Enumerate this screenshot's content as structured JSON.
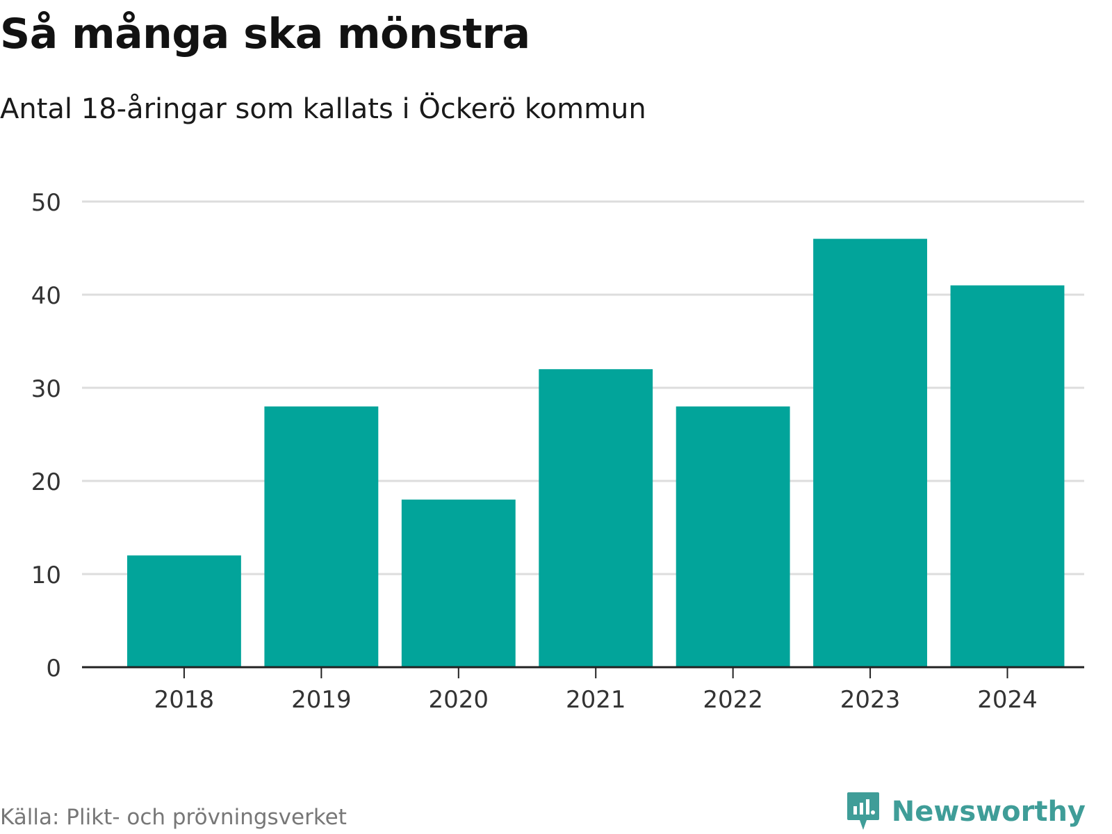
{
  "header": {
    "title": "Så många ska mönstra",
    "subtitle": "Antal 18-åringar som kallats i Öckerö kommun"
  },
  "footer": {
    "source": "Källa: Plikt- och prövningsverket",
    "brand": "Newsworthy",
    "brand_icon": "newsworthy-logo-icon"
  },
  "colors": {
    "bar": "#02a49a",
    "grid": "#dddddd",
    "axis": "#222222",
    "brand": "#3f9d98"
  },
  "chart_data": {
    "type": "bar",
    "title": "Så många ska mönstra",
    "subtitle": "Antal 18-åringar som kallats i Öckerö kommun",
    "categories": [
      "2018",
      "2019",
      "2020",
      "2021",
      "2022",
      "2023",
      "2024"
    ],
    "values": [
      12,
      28,
      18,
      32,
      28,
      46,
      41
    ],
    "xlabel": "",
    "ylabel": "",
    "ylim": [
      0,
      50
    ],
    "yticks": [
      0,
      10,
      20,
      30,
      40,
      50
    ],
    "grid": true,
    "legend": "none"
  }
}
